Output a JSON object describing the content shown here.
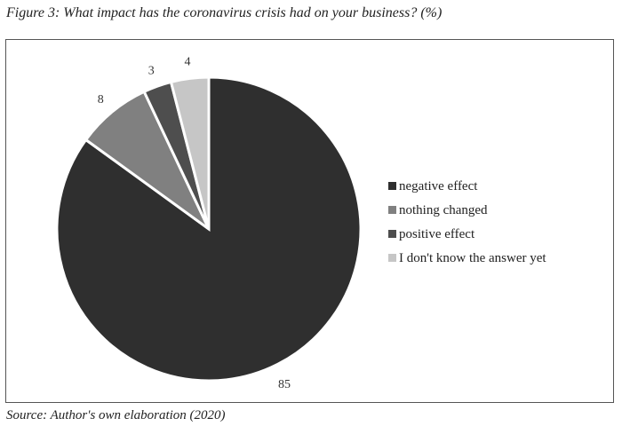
{
  "chart_data": {
    "type": "pie",
    "title": "Figure 3: What impact has the coronavirus crisis had on your business? (%)",
    "categories": [
      "negative effect",
      "nothing changed",
      "positive effect",
      "I don't know the answer yet"
    ],
    "values": [
      85,
      8,
      3,
      4
    ],
    "colors": [
      "#2f2f2f",
      "#808080",
      "#4e4e4e",
      "#c6c6c6"
    ],
    "data_labels": [
      "85",
      "8",
      "3",
      "4"
    ],
    "start": "12 o'clock, clockwise",
    "legend_position": "right",
    "source": "Source: Author's own elaboration (2020)"
  }
}
